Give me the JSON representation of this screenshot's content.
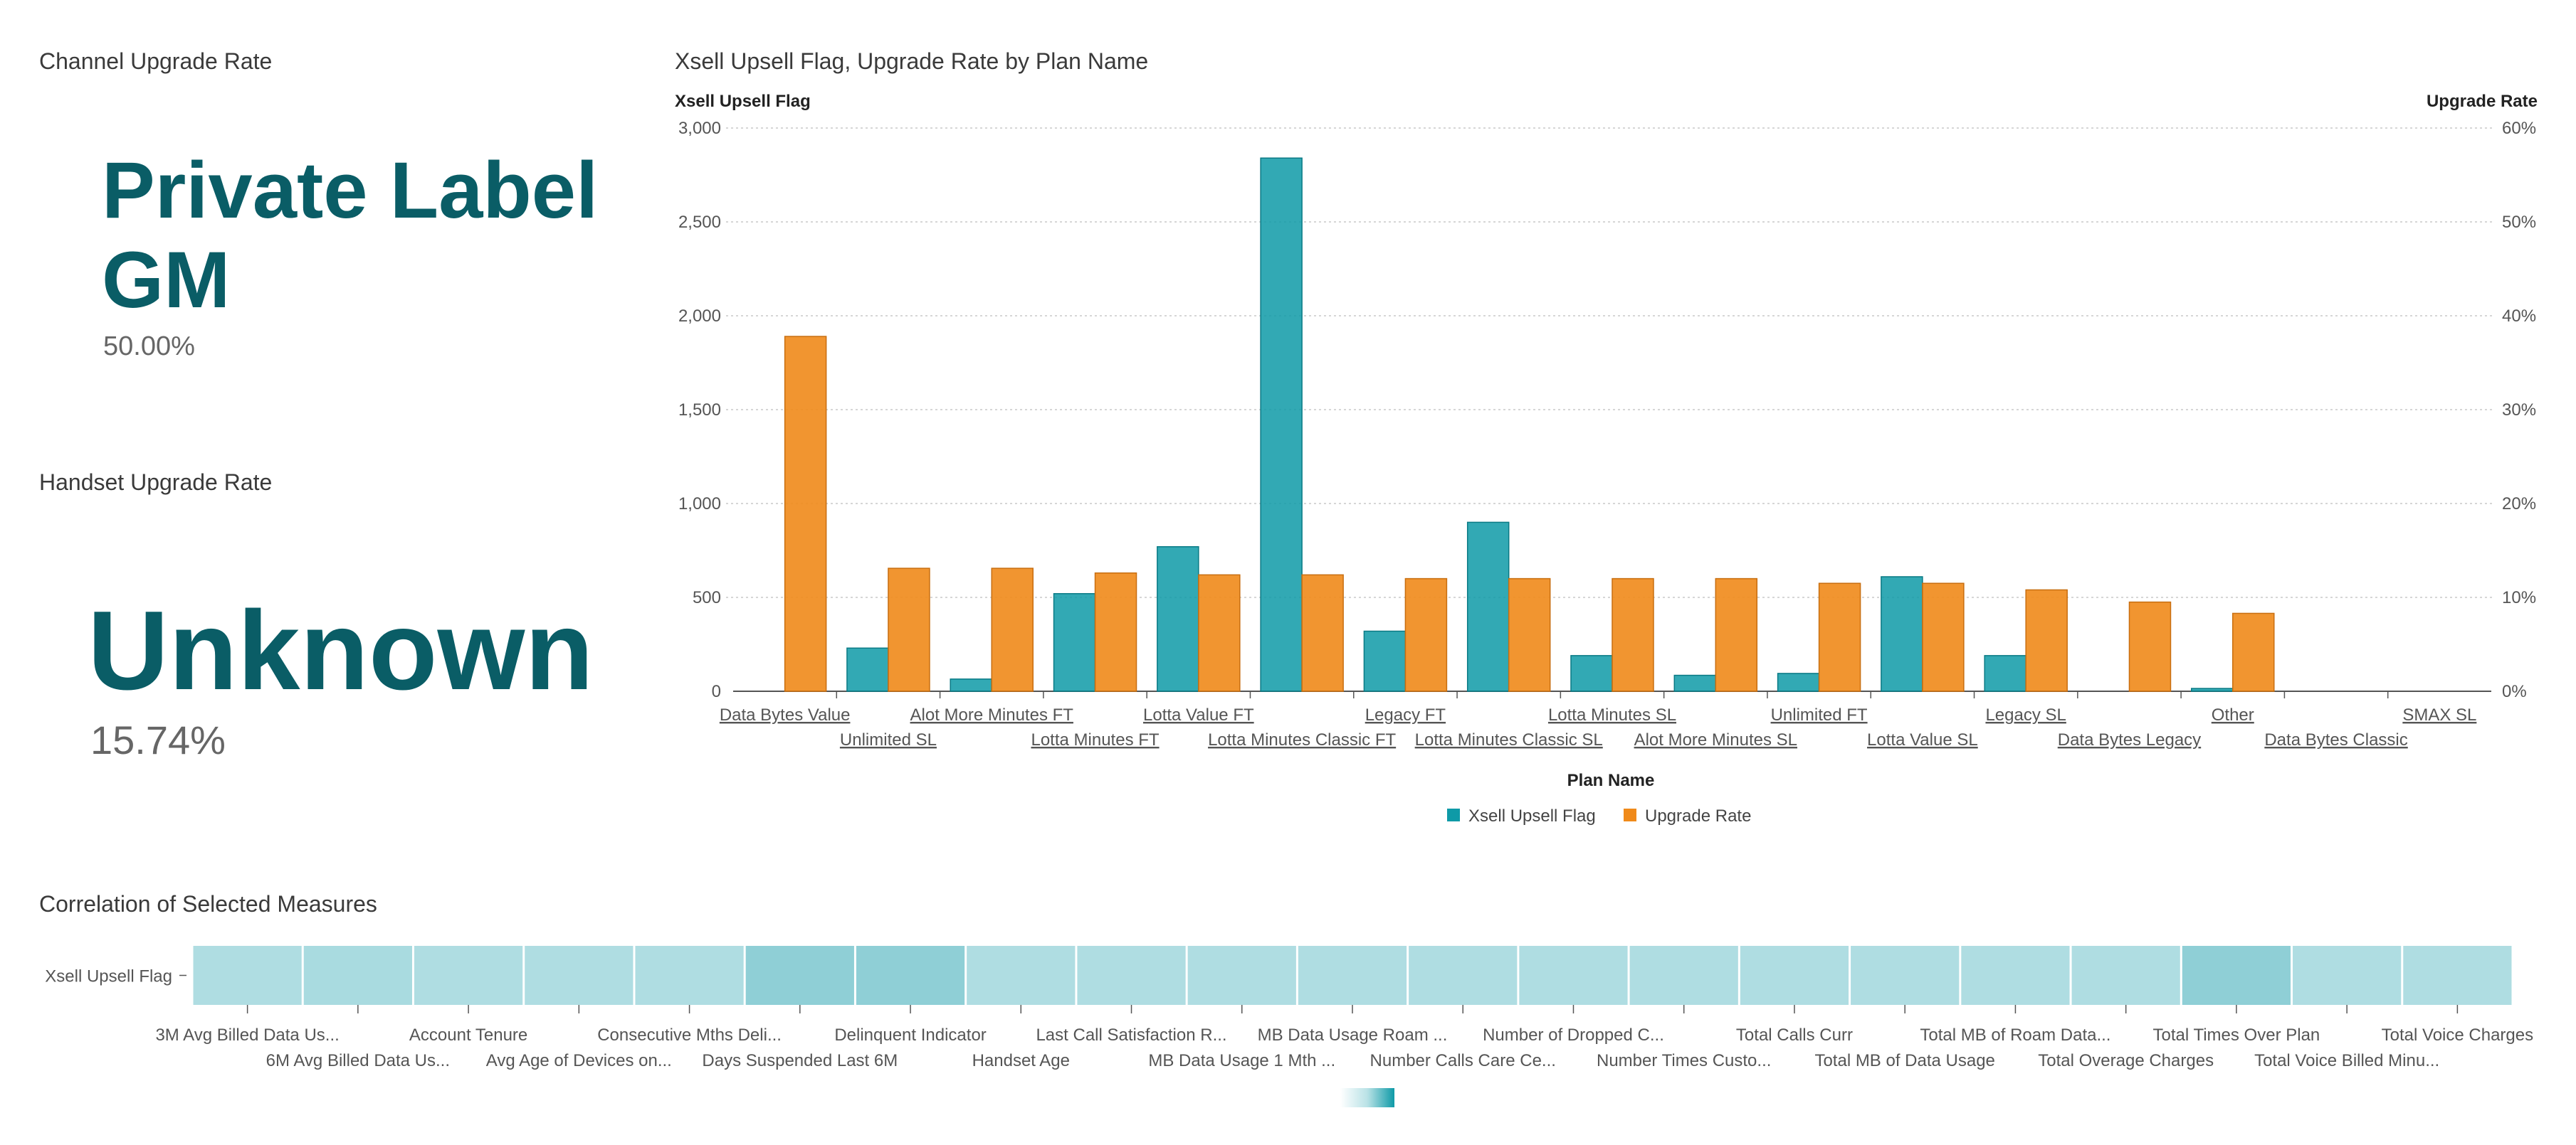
{
  "channel_kpi": {
    "title": "Channel Upgrade Rate",
    "value": "Private Label GM",
    "value_line1": "Private Label",
    "value_line2": "GM",
    "sub": "50.00%"
  },
  "handset_kpi": {
    "title": "Handset Upgrade Rate",
    "value": "Unknown",
    "sub": "15.74%"
  },
  "colors": {
    "bar_teal": "#0e9aa7",
    "bar_orange": "#f08a1a",
    "kpi_text": "#0a5d66",
    "heat_low": "#b9e2e6",
    "heat_high": "#8fcfd6"
  },
  "chart_data": [
    {
      "type": "bar",
      "title": "Xsell Upsell Flag, Upgrade Rate by Plan Name",
      "xlabel": "Plan Name",
      "ylabel": "Xsell Upsell Flag",
      "y2label": "Upgrade Rate",
      "ylim": [
        0,
        3000
      ],
      "y2lim": [
        0,
        0.6
      ],
      "yticks": [
        "0",
        "500",
        "1,000",
        "1,500",
        "2,000",
        "2,500",
        "3,000"
      ],
      "y2ticks": [
        "0%",
        "10%",
        "20%",
        "30%",
        "40%",
        "50%",
        "60%"
      ],
      "grid": true,
      "legend_position": "bottom",
      "categories": [
        "Data Bytes Value",
        "Unlimited SL",
        "Alot More Minutes FT",
        "Lotta Minutes FT",
        "Lotta Value FT",
        "Lotta Minutes Classic FT",
        "Legacy FT",
        "Lotta Minutes Classic SL",
        "Lotta Minutes SL",
        "Alot More Minutes SL",
        "Unlimited FT",
        "Lotta Value SL",
        "Legacy SL",
        "Data Bytes Legacy",
        "Other",
        "Data Bytes Classic",
        "SMAX SL"
      ],
      "series": [
        {
          "name": "Xsell Upsell Flag",
          "axis": "left",
          "values": [
            0,
            230,
            65,
            520,
            770,
            2840,
            320,
            900,
            190,
            85,
            95,
            610,
            190,
            0,
            15,
            0,
            0
          ]
        },
        {
          "name": "Upgrade Rate",
          "axis": "right",
          "values": [
            0.378,
            0.131,
            0.131,
            0.126,
            0.124,
            0.124,
            0.12,
            0.12,
            0.12,
            0.12,
            0.115,
            0.115,
            0.108,
            0.095,
            0.083,
            0,
            0
          ]
        }
      ]
    },
    {
      "type": "heatmap",
      "title": "Correlation of Selected Measures",
      "row_labels": [
        "Xsell Upsell Flag"
      ],
      "columns": [
        "3M Avg Billed Data Us...",
        "6M Avg Billed Data Us...",
        "Account Tenure",
        "Avg Age of Devices on...",
        "Consecutive Mths Deli...",
        "Days Suspended Last 6M",
        "Delinquent Indicator",
        "Handset Age",
        "Last Call Satisfaction R...",
        "MB Data Usage 1 Mth ...",
        "MB Data Usage Roam ...",
        "Number Calls Care Ce...",
        "Number of Dropped C...",
        "Number Times Custo...",
        "Total Calls Curr",
        "Total MB of Data Usage",
        "Total MB of Roam Data...",
        "Total Overage Charges",
        "Total Times Over Plan",
        "Total Voice Billed Minu...",
        "Total Voice Charges"
      ],
      "values": [
        0.1,
        0.15,
        0.1,
        0.1,
        0.1,
        0.4,
        0.4,
        0.1,
        0.1,
        0.1,
        0.1,
        0.1,
        0.1,
        0.1,
        0.1,
        0.1,
        0.1,
        0.1,
        0.4,
        0.1,
        0.1
      ]
    }
  ]
}
